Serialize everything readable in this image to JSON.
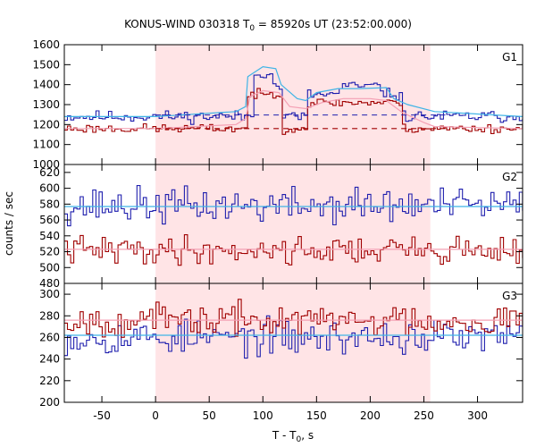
{
  "chart_data": {
    "type": "line",
    "title_main": "KONUS-WIND 030318 T",
    "title_sub": "0",
    "title_tail": " = 85920s UT (23:52:00.000)",
    "xlabel_main": "T - T",
    "xlabel_sub": "0",
    "xlabel_tail": ", s",
    "ylabel": "counts / sec",
    "xlim": [
      -85,
      342
    ],
    "x_ticks": [
      -50,
      0,
      50,
      100,
      150,
      200,
      250,
      300
    ],
    "x_tick_labels": [
      "-50",
      "0",
      "50",
      "100",
      "150",
      "200",
      "250",
      "300"
    ],
    "highlight_interval": [
      0,
      256
    ],
    "bin_width": 2.944,
    "colors": {
      "highlight": "#ffe4e6",
      "blue": "#1f1fae",
      "red": "#a00000",
      "cyan": "#3fb4e6",
      "pink": "#f4a0b4",
      "dashed_blue": "#1f1fae",
      "dashed_red": "#a00000"
    },
    "panels": [
      {
        "label": "G1",
        "ylim": [
          1000,
          1600
        ],
        "y_ticks": [
          1000,
          1100,
          1200,
          1300,
          1400,
          1500,
          1600
        ],
        "y_tick_labels": [
          "1000",
          "1100",
          "1200",
          "1300",
          "1400",
          "1500",
          "1600"
        ],
        "series": [
          {
            "color_key": "blue",
            "base": 1240,
            "noise": 18,
            "seed": 11,
            "bumps": [
              [
                90,
                108,
                220
              ],
              [
                108,
                118,
                150
              ],
              [
                140,
                170,
                110
              ],
              [
                170,
                210,
                150
              ],
              [
                210,
                230,
                110
              ]
            ]
          },
          {
            "color_key": "red",
            "base": 1180,
            "noise": 14,
            "seed": 23,
            "bumps": [
              [
                84,
                118,
                170
              ],
              [
                140,
                230,
                130
              ]
            ]
          }
        ],
        "fit_lines": [
          {
            "color_key": "cyan",
            "points": [
              [
                -85,
                1240
              ],
              [
                0,
                1240
              ],
              [
                75,
                1265
              ],
              [
                84,
                1290
              ],
              [
                86,
                1440
              ],
              [
                100,
                1490
              ],
              [
                112,
                1480
              ],
              [
                117,
                1400
              ],
              [
                132,
                1330
              ],
              [
                140,
                1320
              ],
              [
                150,
                1360
              ],
              [
                170,
                1380
              ],
              [
                190,
                1380
              ],
              [
                215,
                1385
              ],
              [
                222,
                1330
              ],
              [
                235,
                1300
              ],
              [
                260,
                1265
              ],
              [
                342,
                1240
              ]
            ]
          },
          {
            "color_key": "pink",
            "points": [
              [
                -85,
                1180
              ],
              [
                0,
                1180
              ],
              [
                75,
                1200
              ],
              [
                84,
                1230
              ],
              [
                88,
                1340
              ],
              [
                100,
                1370
              ],
              [
                115,
                1360
              ],
              [
                125,
                1290
              ],
              [
                140,
                1280
              ],
              [
                155,
                1310
              ],
              [
                175,
                1330
              ],
              [
                200,
                1330
              ],
              [
                215,
                1320
              ],
              [
                230,
                1260
              ],
              [
                250,
                1210
              ],
              [
                260,
                1190
              ],
              [
                342,
                1180
              ]
            ]
          }
        ],
        "dashed_lines": [
          {
            "color_key": "dashed_blue",
            "x": [
              0,
              270
            ],
            "y": 1248
          },
          {
            "color_key": "dashed_red",
            "x": [
              0,
              270
            ],
            "y": 1180
          }
        ]
      },
      {
        "label": "G2",
        "ylim": [
          480,
          630
        ],
        "y_ticks": [
          480,
          500,
          520,
          540,
          560,
          580,
          600,
          620
        ],
        "y_tick_labels": [
          "480",
          "500",
          "520",
          "540",
          "560",
          "580",
          "600",
          "620"
        ],
        "series": [
          {
            "color_key": "blue",
            "base": 578,
            "noise": 14,
            "seed": 37,
            "bumps": []
          },
          {
            "color_key": "red",
            "base": 522,
            "noise": 11,
            "seed": 41,
            "bumps": []
          }
        ],
        "fit_lines": [
          {
            "color_key": "cyan",
            "points": [
              [
                -85,
                577
              ],
              [
                342,
                577
              ]
            ]
          },
          {
            "color_key": "pink",
            "points": [
              [
                -85,
                523
              ],
              [
                342,
                523
              ]
            ]
          }
        ],
        "dashed_lines": []
      },
      {
        "label": "G3",
        "ylim": [
          200,
          310
        ],
        "y_ticks": [
          200,
          220,
          240,
          260,
          280,
          300
        ],
        "y_tick_labels": [
          "200",
          "220",
          "240",
          "260",
          "280",
          "300"
        ],
        "series": [
          {
            "color_key": "blue",
            "base": 260,
            "noise": 10,
            "seed": 53,
            "bumps": []
          },
          {
            "color_key": "red",
            "base": 276,
            "noise": 9,
            "seed": 67,
            "bumps": []
          }
        ],
        "fit_lines": [
          {
            "color_key": "cyan",
            "points": [
              [
                -85,
                262
              ],
              [
                342,
                262
              ]
            ]
          },
          {
            "color_key": "pink",
            "points": [
              [
                -85,
                276
              ],
              [
                342,
                276
              ]
            ]
          }
        ],
        "dashed_lines": []
      }
    ]
  }
}
